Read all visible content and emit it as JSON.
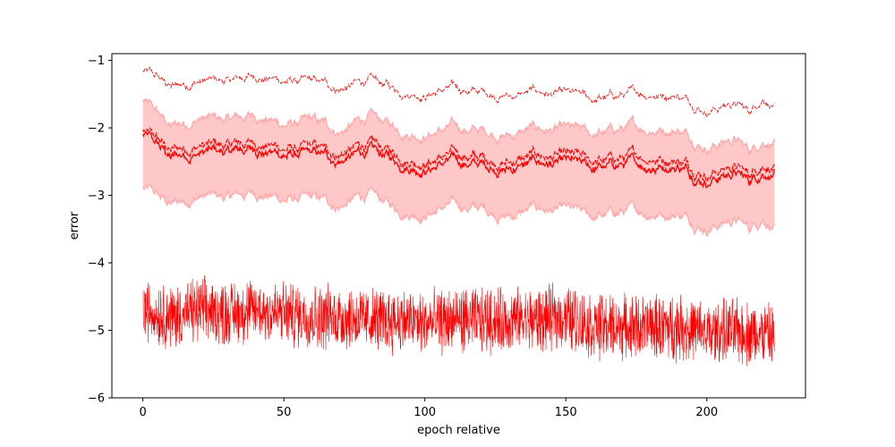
{
  "chart_data": {
    "type": "line",
    "title": "",
    "xlabel": "epoch relative",
    "ylabel": "error",
    "xlim": [
      -11,
      235
    ],
    "ylim": [
      -6,
      -0.9
    ],
    "xticks": [
      0,
      50,
      100,
      150,
      200
    ],
    "xtick_labels": [
      "0",
      "50",
      "100",
      "150",
      "200"
    ],
    "yticks": [
      -6,
      -5,
      -4,
      -3,
      -2,
      -1
    ],
    "ytick_labels": [
      "−6",
      "−5",
      "−4",
      "−3",
      "−2",
      "−1"
    ],
    "grid": false,
    "legend": "none",
    "colors": {
      "series": "#ff0000",
      "band": "#ffc8c8",
      "band_edge": "#ffaaaa"
    },
    "x": [
      0,
      10,
      20,
      30,
      40,
      50,
      60,
      70,
      80,
      90,
      100,
      110,
      120,
      130,
      140,
      150,
      160,
      170,
      180,
      190,
      200,
      210,
      215,
      220,
      224
    ],
    "series": [
      {
        "style": "dashed-thin",
        "values": [
          -1.15,
          -1.4,
          -1.3,
          -1.32,
          -1.22,
          -1.3,
          -1.33,
          -1.42,
          -1.3,
          -1.43,
          -1.48,
          -1.42,
          -1.47,
          -1.52,
          -1.47,
          -1.52,
          -1.6,
          -1.52,
          -1.48,
          -1.5,
          -1.72,
          -1.62,
          -1.78,
          -1.52,
          -1.65
        ]
      },
      {
        "style": "dashed",
        "values": [
          -2.05,
          -2.35,
          -2.25,
          -2.28,
          -2.2,
          -2.3,
          -2.32,
          -2.38,
          -2.25,
          -2.4,
          -2.48,
          -2.4,
          -2.45,
          -2.5,
          -2.42,
          -2.45,
          -2.52,
          -2.45,
          -2.42,
          -2.45,
          -2.65,
          -2.55,
          -2.7,
          -2.5,
          -2.55
        ]
      },
      {
        "style": "solid",
        "values": [
          -2.1,
          -2.45,
          -2.35,
          -2.38,
          -2.3,
          -2.4,
          -2.42,
          -2.48,
          -2.35,
          -2.5,
          -2.58,
          -2.5,
          -2.55,
          -2.6,
          -2.52,
          -2.55,
          -2.62,
          -2.55,
          -2.55,
          -2.55,
          -2.75,
          -2.65,
          -2.8,
          -2.62,
          -2.65
        ]
      },
      {
        "style": "band-upper",
        "values": [
          -1.6,
          -2.0,
          -1.85,
          -1.9,
          -1.8,
          -1.95,
          -1.92,
          -2.05,
          -1.85,
          -2.0,
          -2.08,
          -2.0,
          -2.05,
          -2.1,
          -2.02,
          -2.05,
          -2.12,
          -2.02,
          -2.0,
          -2.0,
          -2.25,
          -2.15,
          -2.35,
          -2.15,
          -2.18
        ]
      },
      {
        "style": "band-lower",
        "values": [
          -2.9,
          -3.15,
          -3.0,
          -3.05,
          -2.95,
          -3.05,
          -3.08,
          -3.15,
          -3.0,
          -3.2,
          -3.25,
          -3.15,
          -3.2,
          -3.3,
          -3.2,
          -3.25,
          -3.35,
          -3.25,
          -3.25,
          -3.25,
          -3.45,
          -3.35,
          -3.5,
          -3.3,
          -3.45
        ]
      },
      {
        "style": "noisy",
        "values": [
          -4.7,
          -4.8,
          -4.7,
          -4.75,
          -4.7,
          -4.75,
          -4.8,
          -4.8,
          -4.85,
          -4.85,
          -4.9,
          -4.85,
          -4.85,
          -4.85,
          -4.85,
          -4.8,
          -4.95,
          -4.95,
          -4.95,
          -4.95,
          -5.05,
          -5.0,
          -5.05,
          -5.05,
          -5.1
        ]
      }
    ]
  }
}
